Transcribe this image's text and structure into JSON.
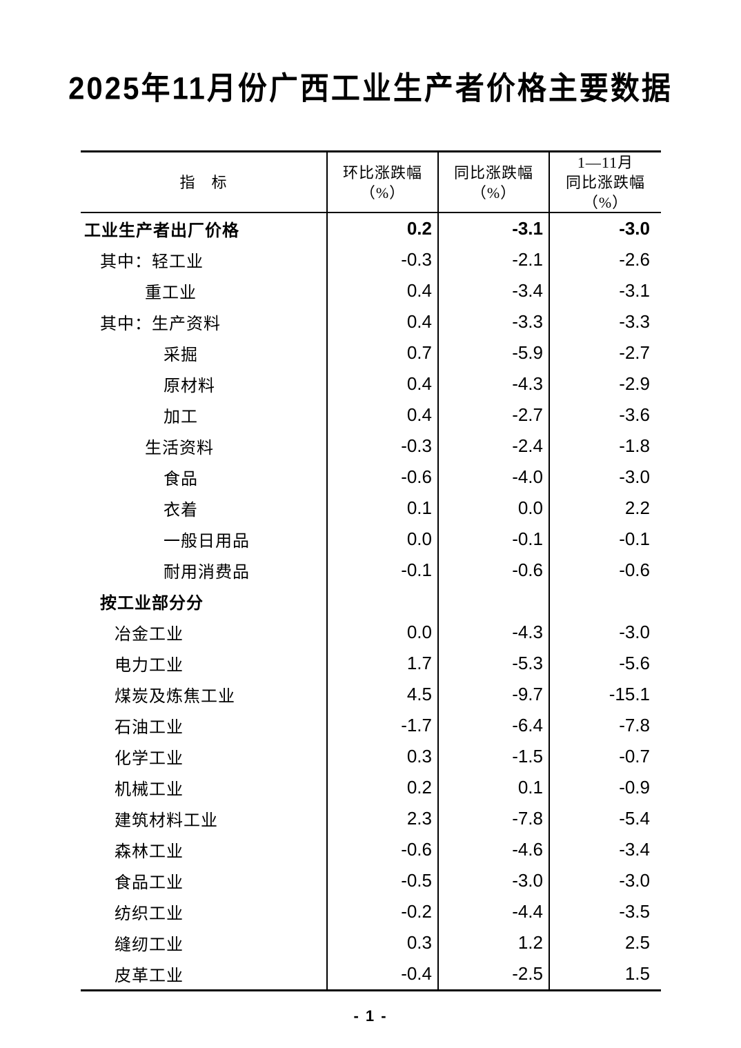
{
  "page": {
    "title": "2025年11月份广西工业生产者价格主要数据",
    "page_number": "- 1 -"
  },
  "table": {
    "header": {
      "indicator": "指　标",
      "mom_line1": "环比涨跌幅",
      "mom_line2": "（%）",
      "yoy_line1": "同比涨跌幅",
      "yoy_line2": "（%）",
      "cum_line1": "1—11月",
      "cum_line2": "同比涨跌幅",
      "cum_line3": "（%）"
    },
    "rows": [
      {
        "label": "工业生产者出厂价格",
        "level": 0,
        "bold": true,
        "mom": "0.2",
        "yoy": "-3.1",
        "cum": "-3.0"
      },
      {
        "label": "其中：轻工业",
        "level": 1,
        "bold": false,
        "mom": "-0.3",
        "yoy": "-2.1",
        "cum": "-2.6"
      },
      {
        "label": "重工业",
        "level": 2,
        "bold": false,
        "mom": "0.4",
        "yoy": "-3.4",
        "cum": "-3.1"
      },
      {
        "label": "其中：生产资料",
        "level": 1,
        "bold": false,
        "mom": "0.4",
        "yoy": "-3.3",
        "cum": "-3.3"
      },
      {
        "label": "采掘",
        "level": 3,
        "bold": false,
        "mom": "0.7",
        "yoy": "-5.9",
        "cum": "-2.7"
      },
      {
        "label": "原材料",
        "level": 3,
        "bold": false,
        "mom": "0.4",
        "yoy": "-4.3",
        "cum": "-2.9"
      },
      {
        "label": "加工",
        "level": 3,
        "bold": false,
        "mom": "0.4",
        "yoy": "-2.7",
        "cum": "-3.6"
      },
      {
        "label": "生活资料",
        "level": 2,
        "bold": false,
        "mom": "-0.3",
        "yoy": "-2.4",
        "cum": "-1.8"
      },
      {
        "label": "食品",
        "level": 3,
        "bold": false,
        "mom": "-0.6",
        "yoy": "-4.0",
        "cum": "-3.0"
      },
      {
        "label": "衣着",
        "level": 3,
        "bold": false,
        "mom": "0.1",
        "yoy": "0.0",
        "cum": "2.2"
      },
      {
        "label": "一般日用品",
        "level": 3,
        "bold": false,
        "mom": "0.0",
        "yoy": "-0.1",
        "cum": "-0.1"
      },
      {
        "label": "耐用消费品",
        "level": 3,
        "bold": false,
        "mom": "-0.1",
        "yoy": "-0.6",
        "cum": "-0.6"
      },
      {
        "label": "按工业部分分",
        "level": 1,
        "bold": true,
        "mom": "",
        "yoy": "",
        "cum": ""
      },
      {
        "label": "冶金工业",
        "level": 4,
        "bold": false,
        "mom": "0.0",
        "yoy": "-4.3",
        "cum": "-3.0"
      },
      {
        "label": "电力工业",
        "level": 4,
        "bold": false,
        "mom": "1.7",
        "yoy": "-5.3",
        "cum": "-5.6"
      },
      {
        "label": "煤炭及炼焦工业",
        "level": 4,
        "bold": false,
        "mom": "4.5",
        "yoy": "-9.7",
        "cum": "-15.1"
      },
      {
        "label": "石油工业",
        "level": 4,
        "bold": false,
        "mom": "-1.7",
        "yoy": "-6.4",
        "cum": "-7.8"
      },
      {
        "label": "化学工业",
        "level": 4,
        "bold": false,
        "mom": "0.3",
        "yoy": "-1.5",
        "cum": "-0.7"
      },
      {
        "label": "机械工业",
        "level": 4,
        "bold": false,
        "mom": "0.2",
        "yoy": "0.1",
        "cum": "-0.9"
      },
      {
        "label": "建筑材料工业",
        "level": 4,
        "bold": false,
        "mom": "2.3",
        "yoy": "-7.8",
        "cum": "-5.4"
      },
      {
        "label": "森林工业",
        "level": 4,
        "bold": false,
        "mom": "-0.6",
        "yoy": "-4.6",
        "cum": "-3.4"
      },
      {
        "label": "食品工业",
        "level": 4,
        "bold": false,
        "mom": "-0.5",
        "yoy": "-3.0",
        "cum": "-3.0"
      },
      {
        "label": "纺织工业",
        "level": 4,
        "bold": false,
        "mom": "-0.2",
        "yoy": "-4.4",
        "cum": "-3.5"
      },
      {
        "label": "缝纫工业",
        "level": 4,
        "bold": false,
        "mom": "0.3",
        "yoy": "1.2",
        "cum": "2.5"
      },
      {
        "label": "皮革工业",
        "level": 4,
        "bold": false,
        "mom": "-0.4",
        "yoy": "-2.5",
        "cum": "1.5"
      }
    ]
  }
}
